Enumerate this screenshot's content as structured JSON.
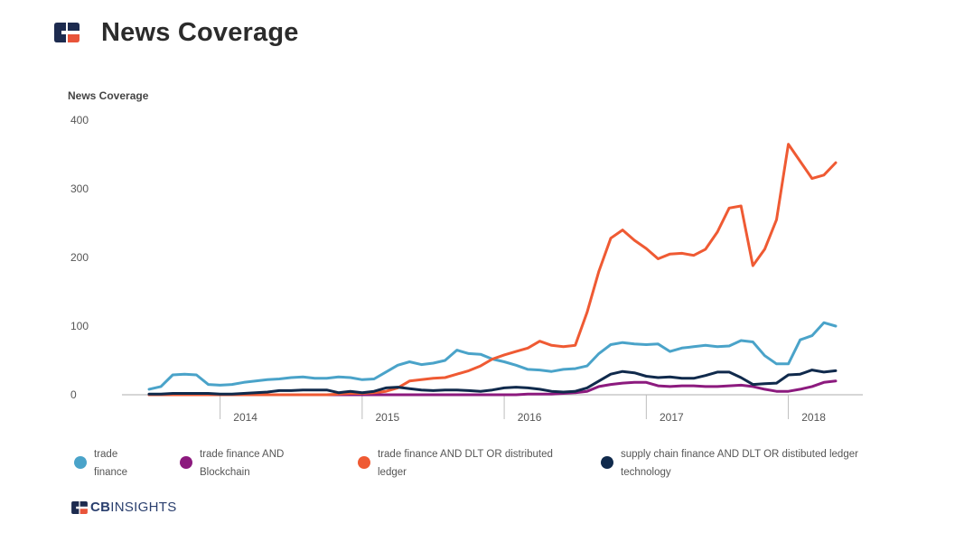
{
  "header": {
    "title": "News Coverage"
  },
  "colors": {
    "brand_navy": "#1d2b4f",
    "brand_red": "#e8543a",
    "trade_finance": "#4aa3c9",
    "blockchain": "#8c1a7e",
    "dlt": "#ef5a33",
    "supply_chain": "#102a4c"
  },
  "footer": {
    "brand_bold": "CB",
    "brand_rest": "INSIGHTS"
  },
  "chart_data": {
    "type": "line",
    "ylabel": "News Coverage",
    "xlabel": "",
    "ylim": [
      0,
      400
    ],
    "yticks": [
      0,
      100,
      200,
      300,
      400
    ],
    "grid": false,
    "legend_position": "bottom",
    "x_tick_labels": [
      "2014",
      "2015",
      "2016",
      "2017",
      "2018"
    ],
    "x_start": "2013-07",
    "x_end": "2018-05",
    "x": [
      "2013-07",
      "2013-08",
      "2013-09",
      "2013-10",
      "2013-11",
      "2013-12",
      "2014-01",
      "2014-02",
      "2014-03",
      "2014-04",
      "2014-05",
      "2014-06",
      "2014-07",
      "2014-08",
      "2014-09",
      "2014-10",
      "2014-11",
      "2014-12",
      "2015-01",
      "2015-02",
      "2015-03",
      "2015-04",
      "2015-05",
      "2015-06",
      "2015-07",
      "2015-08",
      "2015-09",
      "2015-10",
      "2015-11",
      "2015-12",
      "2016-01",
      "2016-02",
      "2016-03",
      "2016-04",
      "2016-05",
      "2016-06",
      "2016-07",
      "2016-08",
      "2016-09",
      "2016-10",
      "2016-11",
      "2016-12",
      "2017-01",
      "2017-02",
      "2017-03",
      "2017-04",
      "2017-05",
      "2017-06",
      "2017-07",
      "2017-08",
      "2017-09",
      "2017-10",
      "2017-11",
      "2017-12",
      "2018-01",
      "2018-02",
      "2018-03",
      "2018-04",
      "2018-05"
    ],
    "series": [
      {
        "name": "trade finance",
        "legend_lines": [
          "trade",
          "finance"
        ],
        "color": "#4aa3c9",
        "values": [
          8,
          12,
          29,
          30,
          29,
          15,
          14,
          15,
          18,
          20,
          22,
          23,
          25,
          26,
          24,
          24,
          26,
          25,
          22,
          23,
          33,
          43,
          48,
          44,
          46,
          50,
          65,
          60,
          59,
          52,
          48,
          43,
          37,
          36,
          34,
          37,
          38,
          42,
          60,
          73,
          76,
          74,
          73,
          74,
          63,
          68,
          70,
          72,
          70,
          71,
          79,
          77,
          57,
          45,
          45,
          80,
          86,
          105,
          100
        ]
      },
      {
        "name": "trade finance AND Blockchain",
        "legend_lines": [
          "trade finance AND",
          "Blockchain"
        ],
        "color": "#8c1a7e",
        "values": [
          0,
          0,
          0,
          0,
          0,
          0,
          0,
          0,
          0,
          0,
          0,
          0,
          0,
          0,
          0,
          0,
          0,
          0,
          0,
          0,
          0,
          0,
          0,
          0,
          0,
          0,
          0,
          0,
          0,
          0,
          0,
          0,
          1,
          1,
          1,
          2,
          3,
          5,
          12,
          15,
          17,
          18,
          18,
          13,
          12,
          13,
          13,
          12,
          12,
          13,
          14,
          12,
          8,
          5,
          5,
          8,
          12,
          18,
          20
        ]
      },
      {
        "name": "trade finance AND DLT OR distributed ledger",
        "legend_lines": [
          "trade finance AND DLT OR distributed",
          "ledger"
        ],
        "color": "#ef5a33",
        "values": [
          0,
          0,
          0,
          0,
          0,
          0,
          0,
          0,
          0,
          0,
          0,
          0,
          0,
          0,
          0,
          0,
          1,
          2,
          2,
          3,
          5,
          10,
          20,
          22,
          24,
          25,
          30,
          35,
          42,
          52,
          58,
          63,
          68,
          78,
          72,
          70,
          72,
          120,
          180,
          228,
          240,
          225,
          213,
          198,
          205,
          206,
          203,
          212,
          237,
          272,
          275,
          188,
          212,
          255,
          365,
          340,
          315,
          320,
          338
        ]
      },
      {
        "name": "supply chain finance AND DLT OR distibuted ledger technology",
        "legend_lines": [
          "supply chain finance AND DLT OR distibuted ledger",
          "technology"
        ],
        "color": "#102a4c",
        "values": [
          1,
          1,
          2,
          2,
          2,
          2,
          1,
          1,
          2,
          3,
          4,
          6,
          6,
          7,
          7,
          7,
          3,
          5,
          3,
          5,
          10,
          11,
          9,
          7,
          6,
          7,
          7,
          6,
          5,
          7,
          10,
          11,
          10,
          8,
          5,
          4,
          5,
          10,
          20,
          30,
          34,
          32,
          27,
          25,
          26,
          24,
          24,
          28,
          33,
          33,
          25,
          15,
          16,
          17,
          29,
          30,
          36,
          33,
          35
        ]
      }
    ]
  }
}
